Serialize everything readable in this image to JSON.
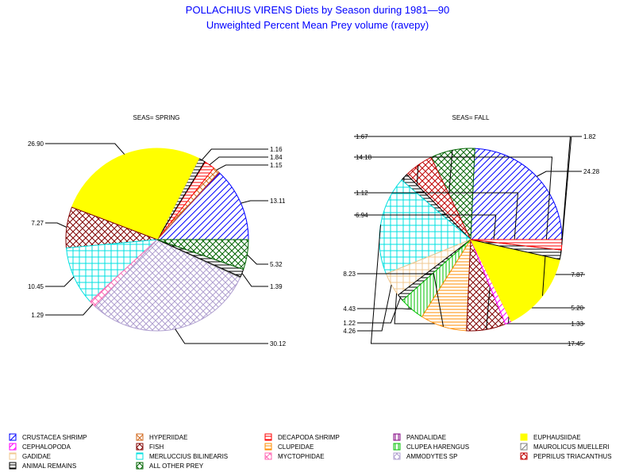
{
  "title": "POLLACHIUS VIRENS Diets by Season during 1981—90",
  "subtitle": "Unweighted Percent Mean Prey volume (ravepy)",
  "chart_data": [
    {
      "type": "pie",
      "title": "SEAS= SPRING",
      "slices": [
        {
          "category": "CRUSTACEA SHRIMP",
          "value": 13.11,
          "label": "13.11"
        },
        {
          "category": "PANDALIDAE",
          "value": 0.15,
          "label": ""
        },
        {
          "category": "HYPERIIDAE",
          "value": 1.15,
          "label": "1.15"
        },
        {
          "category": "DECAPODA SHRIMP",
          "value": 1.84,
          "label": "1.84"
        },
        {
          "category": "PEPRILUS TRIACANTHUS",
          "value": 0.1,
          "label": ""
        },
        {
          "category": "ANIMAL REMAINS",
          "value": 1.16,
          "label": "1.16"
        },
        {
          "category": "EUPHAUSIIDAE",
          "value": 26.9,
          "label": "26.90"
        },
        {
          "category": "FISH",
          "value": 7.27,
          "label": "7.27"
        },
        {
          "category": "MERLUCCIUS BILINEARIS",
          "value": 10.45,
          "label": "10.45"
        },
        {
          "category": "MYCTOPHIDAE",
          "value": 1.29,
          "label": "1.29"
        },
        {
          "category": "AMMODYTES SP",
          "value": 30.12,
          "label": "30.12"
        },
        {
          "category": "MAUROLICUS MUELLERI",
          "value": 0.15,
          "label": ""
        },
        {
          "category": "ANIMAL REMAINS",
          "value": 1.39,
          "label": "1.39"
        },
        {
          "category": "ALL OTHER PREY",
          "value": 5.32,
          "label": "5.32"
        }
      ]
    },
    {
      "type": "pie",
      "title": "SEAS= FALL",
      "slices": [
        {
          "category": "CRUSTACEA SHRIMP",
          "value": 24.28,
          "label": "24.28"
        },
        {
          "category": "ALL OTHER PREY",
          "value": 7.87,
          "label": "7.87"
        },
        {
          "category": "PEPRILUS TRIACANTHUS",
          "value": 5.2,
          "label": "5.20"
        },
        {
          "category": "ANIMAL REMAINS",
          "value": 1.33,
          "label": "1.33"
        },
        {
          "category": "MERLUCCIUS BILINEARIS",
          "value": 17.45,
          "label": "17.45"
        },
        {
          "category": "GADIDAE",
          "value": 4.26,
          "label": "4.26"
        },
        {
          "category": "ANIMAL REMAINS",
          "value": 1.22,
          "label": "1.22"
        },
        {
          "category": "CLUPEA HARENGUS",
          "value": 4.43,
          "label": "4.43"
        },
        {
          "category": "CLUPEIDAE",
          "value": 8.23,
          "label": "8.23"
        },
        {
          "category": "FISH",
          "value": 6.94,
          "label": "6.94"
        },
        {
          "category": "CEPHALOPODA",
          "value": 1.12,
          "label": "1.12"
        },
        {
          "category": "EUPHAUSIIDAE",
          "value": 14.18,
          "label": "14.18"
        },
        {
          "category": "ANIMAL REMAINS",
          "value": 1.67,
          "label": "1.67"
        },
        {
          "category": "DECAPODA SHRIMP",
          "value": 1.82,
          "label": "1.82"
        }
      ]
    }
  ],
  "legend": [
    {
      "label": "CRUSTACEA SHRIMP",
      "color": "#0000ff",
      "pattern": "diag-right"
    },
    {
      "label": "HYPERIIDAE",
      "color": "#d2691e",
      "pattern": "cross-diag"
    },
    {
      "label": "DECAPODA SHRIMP",
      "color": "#ff0000",
      "pattern": "hlines"
    },
    {
      "label": "PANDALIDAE",
      "color": "#800080",
      "pattern": "vlines"
    },
    {
      "label": "EUPHAUSIIDAE",
      "color": "#ffff00",
      "pattern": "solid"
    },
    {
      "label": "CEPHALOPODA",
      "color": "#ff00ff",
      "pattern": "diag-right"
    },
    {
      "label": "FISH",
      "color": "#800000",
      "pattern": "cross-diag"
    },
    {
      "label": "CLUPEIDAE",
      "color": "#ff8c00",
      "pattern": "hlines"
    },
    {
      "label": "CLUPEA HARENGUS",
      "color": "#00c000",
      "pattern": "vlines"
    },
    {
      "label": "MAUROLICUS MUELLERI",
      "color": "#808080",
      "pattern": "diag-right"
    },
    {
      "label": "GADIDAE",
      "color": "#f0c890",
      "pattern": "grid"
    },
    {
      "label": "MERLUCCIUS BILINEARIS",
      "color": "#00e0e0",
      "pattern": "grid"
    },
    {
      "label": "MYCTOPHIDAE",
      "color": "#ff69b4",
      "pattern": "cross-diag"
    },
    {
      "label": "AMMODYTES SP",
      "color": "#b0a0d0",
      "pattern": "cross-diag"
    },
    {
      "label": "PEPRILUS TRIACANTHUS",
      "color": "#c00000",
      "pattern": "cross-diag"
    },
    {
      "label": "ANIMAL REMAINS",
      "color": "#000000",
      "pattern": "hlines"
    },
    {
      "label": "ALL OTHER PREY",
      "color": "#006400",
      "pattern": "cross-diag"
    }
  ]
}
